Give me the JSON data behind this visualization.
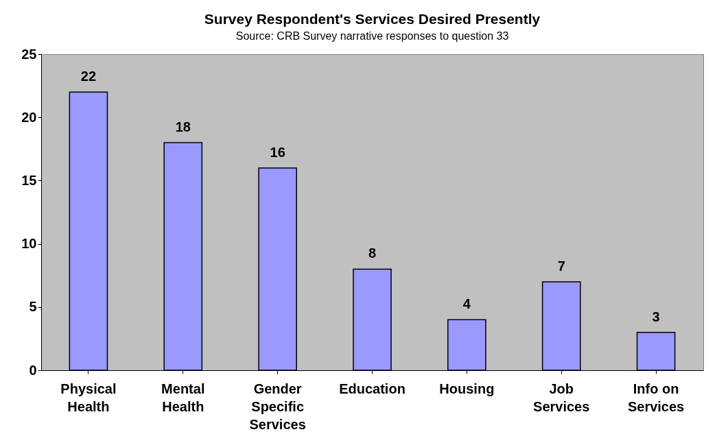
{
  "chart_data": {
    "type": "bar",
    "title": "Survey Respondent's Services Desired Presently",
    "subtitle": "Source: CRB Survey narrative responses to question 33",
    "categories": [
      "Physical\nHealth",
      "Mental\nHealth",
      "Gender\nSpecific\nServices",
      "Education",
      "Housing",
      "Job\nServices",
      "Info on\nServices"
    ],
    "values": [
      22,
      18,
      16,
      8,
      4,
      7,
      3
    ],
    "color": "#9999ff",
    "ylim": [
      0,
      25
    ],
    "yticks": [
      0,
      5,
      10,
      15,
      20,
      25
    ],
    "grid": false,
    "data_labels": true
  }
}
